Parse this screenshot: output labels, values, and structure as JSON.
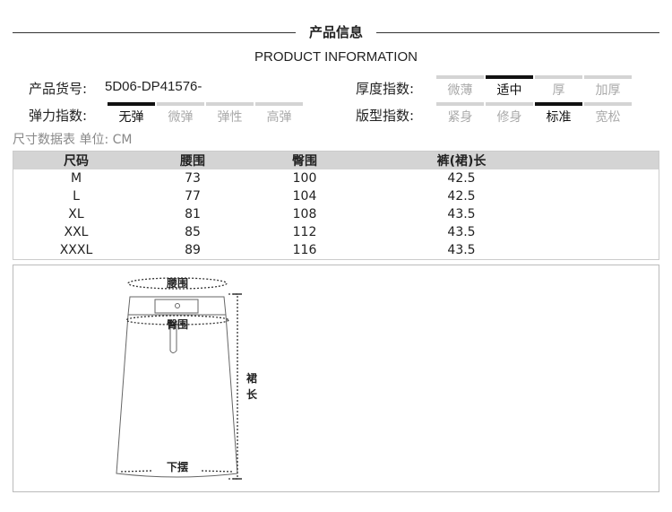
{
  "header": {
    "title": "产品信息",
    "subtitle": "PRODUCT INFORMATION"
  },
  "product": {
    "code_label": "产品货号:",
    "code_value": "5D06-DP41576-"
  },
  "indices": {
    "elasticity": {
      "label": "弹力指数:",
      "options": [
        "无弹",
        "微弹",
        "弹性",
        "高弹"
      ],
      "selected": 0
    },
    "thickness": {
      "label": "厚度指数:",
      "options": [
        "微薄",
        "适中",
        "厚",
        "加厚"
      ],
      "selected": 1
    },
    "fit": {
      "label": "版型指数:",
      "options": [
        "紧身",
        "修身",
        "标准",
        "宽松"
      ],
      "selected": 2
    }
  },
  "unit_text": "尺寸数据表 单位: CM",
  "table": {
    "headers": [
      "尺码",
      "腰围",
      "臀围",
      "裤(裙)长"
    ],
    "rows": [
      [
        "M",
        "73",
        "100",
        "42.5"
      ],
      [
        "L",
        "77",
        "104",
        "42.5"
      ],
      [
        "XL",
        "81",
        "108",
        "43.5"
      ],
      [
        "XXL",
        "85",
        "112",
        "43.5"
      ],
      [
        "XXXL",
        "89",
        "116",
        "43.5"
      ]
    ]
  },
  "diagram": {
    "waist": "腰围",
    "hip": "臀围",
    "length": "裙长",
    "hem": "下摆"
  }
}
